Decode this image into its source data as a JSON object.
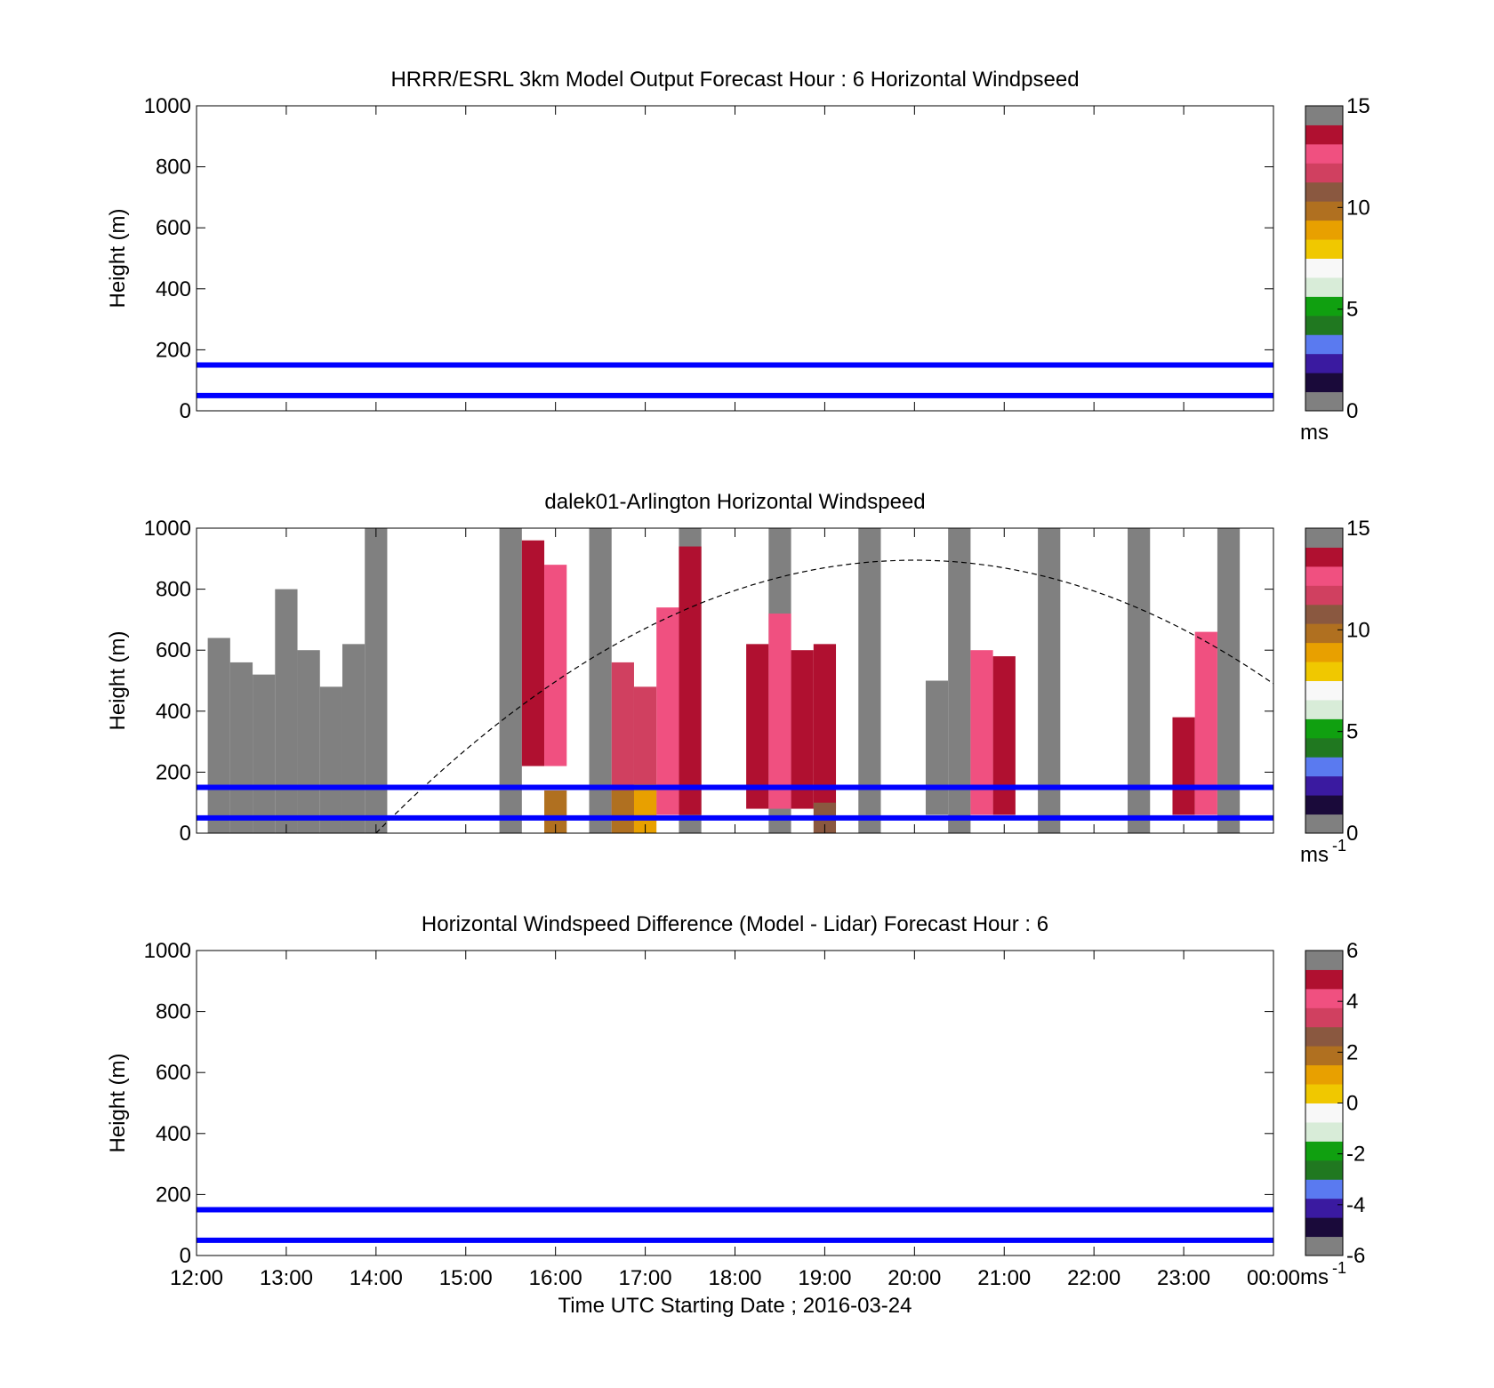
{
  "chart_data": [
    {
      "type": "heatmap",
      "title": "HRRR/ESRL 3km Model Output   Forecast Hour : 6 Horizontal Windpseed",
      "ylabel": "Height (m)",
      "ylim": [
        0,
        1000
      ],
      "yticks": [
        "0",
        "200",
        "400",
        "600",
        "800",
        "1000"
      ],
      "xlim": [
        "12:00",
        "00:00"
      ],
      "cells": [],
      "reference_lines": [
        150,
        50
      ],
      "colorbar": {
        "min": 0,
        "max": 15,
        "ticks": [
          "0",
          "5",
          "10",
          "15"
        ],
        "unit": "ms"
      }
    },
    {
      "type": "heatmap",
      "title": "dalek01-Arlington  Horizontal Windspeed",
      "ylabel": "Height (m)",
      "ylim": [
        0,
        1000
      ],
      "yticks": [
        "0",
        "200",
        "400",
        "600",
        "800",
        "1000"
      ],
      "xlim": [
        "12:00",
        "00:00"
      ],
      "reference_lines": [
        150,
        50
      ],
      "boundary_layer_curve": {
        "start_hour": 14.0,
        "peak_hour": 20.0,
        "peak_height": 895,
        "end_hour": 24.0,
        "end_height": 490
      },
      "colorbar": {
        "min": 0,
        "max": 15,
        "ticks": [
          "0",
          "5",
          "10",
          "15"
        ],
        "unit": "ms",
        "unit_superscript": "-1"
      },
      "cells": [
        {
          "t": 12.25,
          "top": 640,
          "bot": 0,
          "v": "gray"
        },
        {
          "t": 12.5,
          "top": 560,
          "bot": 0,
          "v": "gray"
        },
        {
          "t": 12.75,
          "top": 520,
          "bot": 0,
          "v": "gray"
        },
        {
          "t": 13.0,
          "top": 800,
          "bot": 0,
          "v": "gray"
        },
        {
          "t": 13.25,
          "top": 600,
          "bot": 0,
          "v": "gray"
        },
        {
          "t": 13.5,
          "top": 480,
          "bot": 0,
          "v": "gray"
        },
        {
          "t": 13.75,
          "top": 620,
          "bot": 0,
          "v": "gray"
        },
        {
          "t": 14.0,
          "top": 1000,
          "bot": 0,
          "v": "gray"
        },
        {
          "t": 15.5,
          "top": 1000,
          "bot": 0,
          "v": "gray"
        },
        {
          "t": 16.5,
          "top": 1000,
          "bot": 0,
          "v": "gray"
        },
        {
          "t": 17.5,
          "top": 1000,
          "bot": 0,
          "v": "gray"
        },
        {
          "t": 18.5,
          "top": 1000,
          "bot": 0,
          "v": "gray"
        },
        {
          "t": 19.5,
          "top": 1000,
          "bot": 0,
          "v": "gray"
        },
        {
          "t": 20.5,
          "top": 1000,
          "bot": 0,
          "v": "gray"
        },
        {
          "t": 21.5,
          "top": 1000,
          "bot": 0,
          "v": "gray"
        },
        {
          "t": 22.5,
          "top": 1000,
          "bot": 0,
          "v": "gray"
        },
        {
          "t": 23.5,
          "top": 1000,
          "bot": 0,
          "v": "gray"
        },
        {
          "t": 15.75,
          "top": 960,
          "bot": 220,
          "v": 13.5
        },
        {
          "t": 16.0,
          "top": 880,
          "bot": 220,
          "v": 13.0
        },
        {
          "t": 17.25,
          "top": 740,
          "bot": 60,
          "v": 12.5
        },
        {
          "t": 17.5,
          "top": 940,
          "bot": 60,
          "v": 13.5
        },
        {
          "t": 18.25,
          "top": 620,
          "bot": 80,
          "v": 13.5
        },
        {
          "t": 18.5,
          "top": 720,
          "bot": 80,
          "v": 13.0
        },
        {
          "t": 18.75,
          "top": 600,
          "bot": 80,
          "v": 13.5
        },
        {
          "t": 19.0,
          "top": 620,
          "bot": 80,
          "v": 13.5
        },
        {
          "t": 20.25,
          "top": 500,
          "bot": 60,
          "v": 14.5
        },
        {
          "t": 20.75,
          "top": 600,
          "bot": 60,
          "v": 13.0
        },
        {
          "t": 21.0,
          "top": 580,
          "bot": 60,
          "v": 13.5
        },
        {
          "t": 23.0,
          "top": 380,
          "bot": 60,
          "v": 13.5
        },
        {
          "t": 23.25,
          "top": 660,
          "bot": 60,
          "v": 13.0
        },
        {
          "t": 16.75,
          "top": 560,
          "bot": 40,
          "v": 11.5
        },
        {
          "t": 17.0,
          "top": 480,
          "bot": 40,
          "v": 12.0
        },
        {
          "t": 16.0,
          "top": 140,
          "bot": 0,
          "v": 9.5
        },
        {
          "t": 16.75,
          "top": 140,
          "bot": 0,
          "v": 9.5
        },
        {
          "t": 17.0,
          "top": 160,
          "bot": 0,
          "v": 9.0
        },
        {
          "t": 19.0,
          "top": 100,
          "bot": 0,
          "v": 10.5
        }
      ]
    },
    {
      "type": "heatmap",
      "title": "Horizontal Windspeed Difference (Model - Lidar) Forecast Hour : 6",
      "xlabel": "Time UTC  Starting Date ; 2016-03-24",
      "ylabel": "Height (m)",
      "ylim": [
        0,
        1000
      ],
      "yticks": [
        "0",
        "200",
        "400",
        "600",
        "800",
        "1000"
      ],
      "xlim": [
        "12:00",
        "00:00"
      ],
      "xticks": [
        "12:00",
        "13:00",
        "14:00",
        "15:00",
        "16:00",
        "17:00",
        "18:00",
        "19:00",
        "20:00",
        "21:00",
        "22:00",
        "23:00",
        "00:00"
      ],
      "cells": [],
      "reference_lines": [
        150,
        50
      ],
      "colorbar": {
        "min": -6,
        "max": 6,
        "ticks": [
          "-6",
          "-4",
          "-2",
          "0",
          "2",
          "4",
          "6"
        ],
        "unit": "ms",
        "unit_superscript": "-1"
      }
    }
  ],
  "colors": {
    "reference_line": "#0000ff",
    "no_data": "#808080",
    "colormap": [
      "#808080",
      "#1a0a3a",
      "#3a1aa0",
      "#5a7af0",
      "#207820",
      "#10a010",
      "#d8ecd8",
      "#f8f8f8",
      "#f0c800",
      "#e8a000",
      "#b07020",
      "#8a5840",
      "#d04060",
      "#f05080",
      "#b01030",
      "#808080"
    ]
  }
}
